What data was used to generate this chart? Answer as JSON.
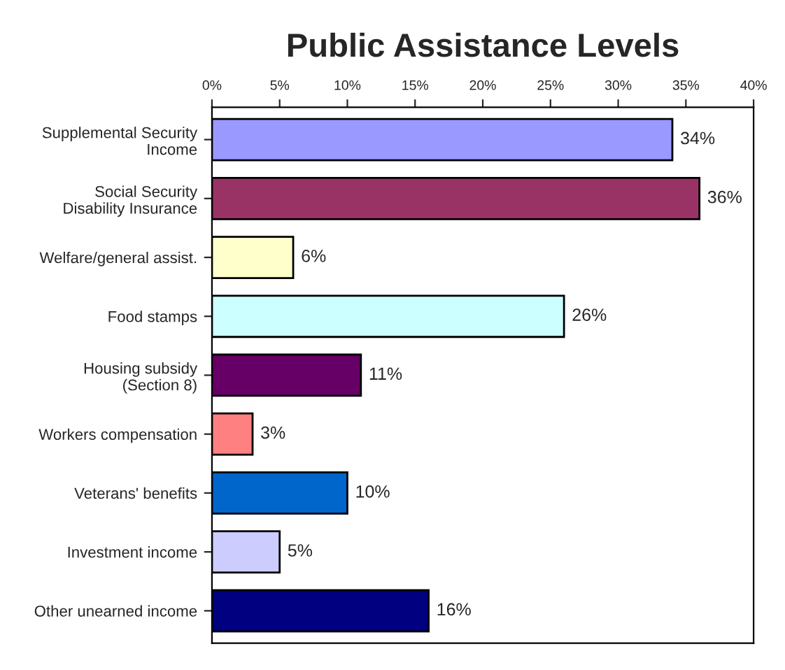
{
  "chart_data": {
    "type": "bar",
    "orientation": "horizontal",
    "title": "Public Assistance Levels",
    "categories": [
      "Supplemental Security\nIncome",
      "Social Security\nDisability Insurance",
      "Welfare/general assist.",
      "Food stamps",
      "Housing subsidy\n(Section 8)",
      "Workers compensation",
      "Veterans' benefits",
      "Investment income",
      "Other unearned income"
    ],
    "values": [
      34,
      36,
      6,
      26,
      11,
      3,
      10,
      5,
      16
    ],
    "colors": [
      "#9999ff",
      "#993366",
      "#ffffcc",
      "#ccffff",
      "#660066",
      "#ff8080",
      "#0066cc",
      "#ccccff",
      "#000080"
    ],
    "value_labels": [
      "34%",
      "36%",
      "6%",
      "26%",
      "11%",
      "3%",
      "10%",
      "5%",
      "16%"
    ],
    "xlim": [
      0,
      40
    ],
    "xticks": [
      {
        "value": 0,
        "label": "0%"
      },
      {
        "value": 5,
        "label": "5%"
      },
      {
        "value": 10,
        "label": "10%"
      },
      {
        "value": 15,
        "label": "15%"
      },
      {
        "value": 20,
        "label": "20%"
      },
      {
        "value": 25,
        "label": "25%"
      },
      {
        "value": 30,
        "label": "30%"
      },
      {
        "value": 35,
        "label": "35%"
      },
      {
        "value": 40,
        "label": "40%"
      }
    ],
    "grid": false,
    "legend": false
  }
}
